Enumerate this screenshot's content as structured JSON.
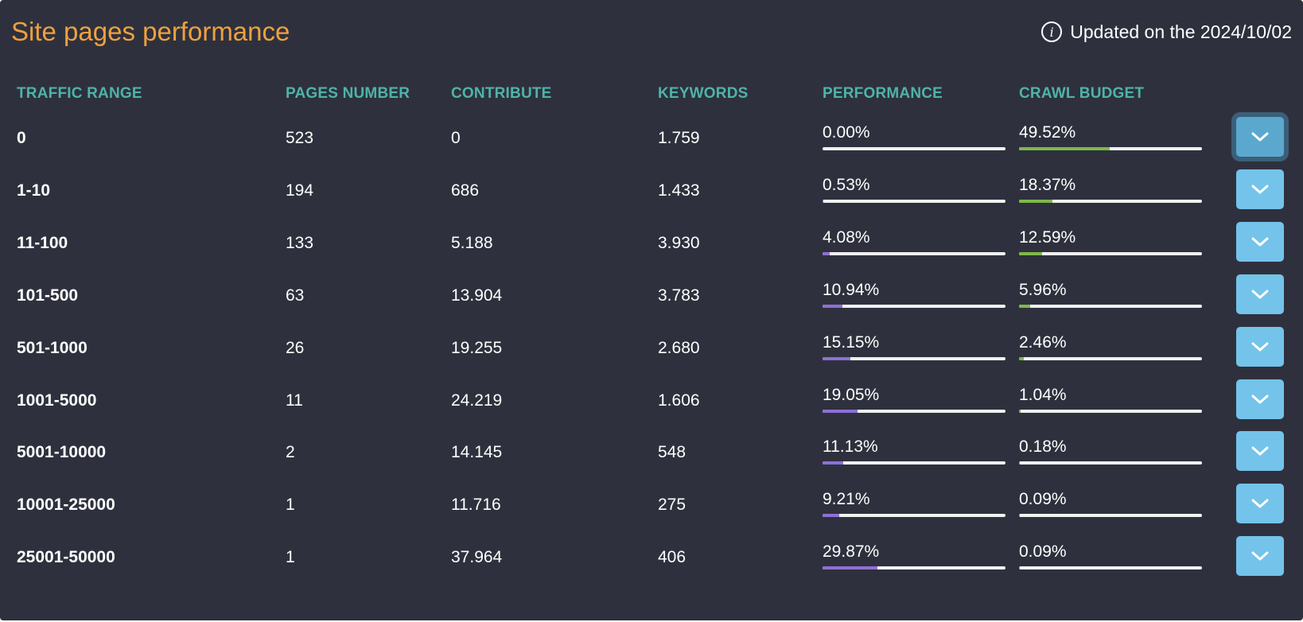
{
  "header": {
    "title": "Site pages performance",
    "updated": "Updated on the 2024/10/02",
    "info_icon": "i"
  },
  "columns": {
    "traffic_range": "TRAFFIC RANGE",
    "pages_number": "PAGES NUMBER",
    "contribute": "CONTRIBUTE",
    "keywords": "KEYWORDS",
    "performance": "PERFORMANCE",
    "crawl_budget": "CRAWL BUDGET"
  },
  "colors": {
    "title": "#f0a040",
    "header": "#4fb3a9",
    "background": "#2e313d",
    "performance_bar": "#8e70d6",
    "crawl_bar": "#7fb84a",
    "button": "#74c3ea"
  },
  "rows": [
    {
      "range": "0",
      "pages": "523",
      "contribute": "0",
      "keywords": "1.759",
      "performance": "0.00%",
      "performance_value": 0.0,
      "crawl": "49.52%",
      "crawl_value": 49.52,
      "expanded": true
    },
    {
      "range": "1-10",
      "pages": "194",
      "contribute": "686",
      "keywords": "1.433",
      "performance": "0.53%",
      "performance_value": 0.53,
      "crawl": "18.37%",
      "crawl_value": 18.37,
      "expanded": false
    },
    {
      "range": "11-100",
      "pages": "133",
      "contribute": "5.188",
      "keywords": "3.930",
      "performance": "4.08%",
      "performance_value": 4.08,
      "crawl": "12.59%",
      "crawl_value": 12.59,
      "expanded": false
    },
    {
      "range": "101-500",
      "pages": "63",
      "contribute": "13.904",
      "keywords": "3.783",
      "performance": "10.94%",
      "performance_value": 10.94,
      "crawl": "5.96%",
      "crawl_value": 5.96,
      "expanded": false
    },
    {
      "range": "501-1000",
      "pages": "26",
      "contribute": "19.255",
      "keywords": "2.680",
      "performance": "15.15%",
      "performance_value": 15.15,
      "crawl": "2.46%",
      "crawl_value": 2.46,
      "expanded": false
    },
    {
      "range": "1001-5000",
      "pages": "11",
      "contribute": "24.219",
      "keywords": "1.606",
      "performance": "19.05%",
      "performance_value": 19.05,
      "crawl": "1.04%",
      "crawl_value": 1.04,
      "expanded": false
    },
    {
      "range": "5001-10000",
      "pages": "2",
      "contribute": "14.145",
      "keywords": "548",
      "performance": "11.13%",
      "performance_value": 11.13,
      "crawl": "0.18%",
      "crawl_value": 0.18,
      "expanded": false
    },
    {
      "range": "10001-25000",
      "pages": "1",
      "contribute": "11.716",
      "keywords": "275",
      "performance": "9.21%",
      "performance_value": 9.21,
      "crawl": "0.09%",
      "crawl_value": 0.09,
      "expanded": false
    },
    {
      "range": "25001-50000",
      "pages": "1",
      "contribute": "37.964",
      "keywords": "406",
      "performance": "29.87%",
      "performance_value": 29.87,
      "crawl": "0.09%",
      "crawl_value": 0.09,
      "expanded": false
    }
  ]
}
